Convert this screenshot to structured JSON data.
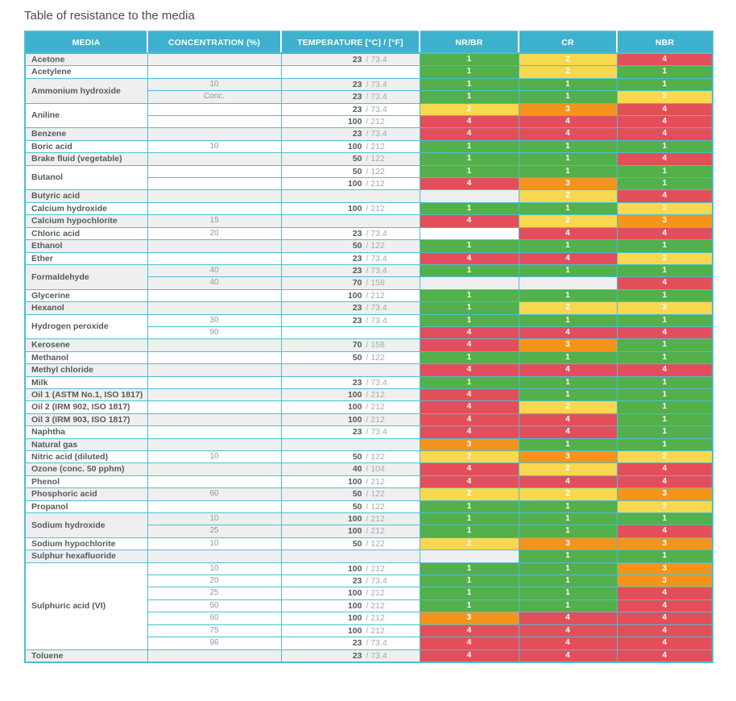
{
  "title": "Table of resistance to the media",
  "table": {
    "columns": [
      "MEDIA",
      "CONCENTRATION (%)",
      "TEMPERATURE [°C] / [°F]",
      "NR/BR",
      "CR",
      "NBR"
    ],
    "header_bg": "#3db1cd",
    "border_color": "#4bbfd3",
    "alt_row_bg": "#efefef",
    "rating_colors": {
      "1": "#53b04b",
      "2": "#f7d84f",
      "3": "#f5941d",
      "4": "#e24f5b"
    },
    "groups": [
      {
        "media": "Acetone",
        "rows": [
          {
            "conc": "",
            "temp_c": "23",
            "temp_f": "73.4",
            "nrbr": 1,
            "cr": 2,
            "nbr": 4
          }
        ]
      },
      {
        "media": "Acetylene",
        "rows": [
          {
            "conc": "",
            "temp_c": "",
            "temp_f": "",
            "nrbr": 1,
            "cr": 2,
            "nbr": 1
          }
        ]
      },
      {
        "media": "Ammonium hydroxide",
        "rows": [
          {
            "conc": "10",
            "temp_c": "23",
            "temp_f": "73.4",
            "nrbr": 1,
            "cr": 1,
            "nbr": 1
          },
          {
            "conc": "Conc.",
            "temp_c": "23",
            "temp_f": "73.4",
            "nrbr": 1,
            "cr": 1,
            "nbr": 2
          }
        ]
      },
      {
        "media": "Aniline",
        "rows": [
          {
            "conc": "",
            "temp_c": "23",
            "temp_f": "73.4",
            "nrbr": 2,
            "cr": 3,
            "nbr": 4
          },
          {
            "conc": "",
            "temp_c": "100",
            "temp_f": "212",
            "nrbr": 4,
            "cr": 4,
            "nbr": 4
          }
        ]
      },
      {
        "media": "Benzene",
        "rows": [
          {
            "conc": "",
            "temp_c": "23",
            "temp_f": "73.4",
            "nrbr": 4,
            "cr": 4,
            "nbr": 4
          }
        ]
      },
      {
        "media": "Boric acid",
        "rows": [
          {
            "conc": "10",
            "temp_c": "100",
            "temp_f": "212",
            "nrbr": 1,
            "cr": 1,
            "nbr": 1
          }
        ]
      },
      {
        "media": "Brake fluid (vegetable)",
        "rows": [
          {
            "conc": "",
            "temp_c": "50",
            "temp_f": "122",
            "nrbr": 1,
            "cr": 1,
            "nbr": 4
          }
        ]
      },
      {
        "media": "Butanol",
        "rows": [
          {
            "conc": "",
            "temp_c": "50",
            "temp_f": "122",
            "nrbr": 1,
            "cr": 1,
            "nbr": 1
          },
          {
            "conc": "",
            "temp_c": "100",
            "temp_f": "212",
            "nrbr": 4,
            "cr": 3,
            "nbr": 1
          }
        ]
      },
      {
        "media": "Butyric acid",
        "rows": [
          {
            "conc": "",
            "temp_c": "",
            "temp_f": "",
            "nrbr": null,
            "cr": 2,
            "nbr": 4
          }
        ]
      },
      {
        "media": "Calcium hydroxide",
        "rows": [
          {
            "conc": "",
            "temp_c": "100",
            "temp_f": "212",
            "nrbr": 1,
            "cr": 1,
            "nbr": 2
          }
        ]
      },
      {
        "media": "Calcium hypochlorite",
        "rows": [
          {
            "conc": "15",
            "temp_c": "",
            "temp_f": "",
            "nrbr": 4,
            "cr": 2,
            "nbr": 3
          }
        ]
      },
      {
        "media": "Chloric acid",
        "rows": [
          {
            "conc": "20",
            "temp_c": "23",
            "temp_f": "73.4",
            "nrbr": null,
            "cr": 4,
            "nbr": 4
          }
        ]
      },
      {
        "media": "Ethanol",
        "rows": [
          {
            "conc": "",
            "temp_c": "50",
            "temp_f": "122",
            "nrbr": 1,
            "cr": 1,
            "nbr": 1
          }
        ]
      },
      {
        "media": "Ether",
        "rows": [
          {
            "conc": "",
            "temp_c": "23",
            "temp_f": "73.4",
            "nrbr": 4,
            "cr": 4,
            "nbr": 2
          }
        ]
      },
      {
        "media": "Formaldehyde",
        "rows": [
          {
            "conc": "40",
            "temp_c": "23",
            "temp_f": "73.4",
            "nrbr": 1,
            "cr": 1,
            "nbr": 1
          },
          {
            "conc": "40",
            "temp_c": "70",
            "temp_f": "158",
            "nrbr": null,
            "cr": null,
            "nbr": 4
          }
        ]
      },
      {
        "media": "Glycerine",
        "rows": [
          {
            "conc": "",
            "temp_c": "100",
            "temp_f": "212",
            "nrbr": 1,
            "cr": 1,
            "nbr": 1
          }
        ]
      },
      {
        "media": "Hexanol",
        "rows": [
          {
            "conc": "",
            "temp_c": "23",
            "temp_f": "73.4",
            "nrbr": 1,
            "cr": 2,
            "nbr": 2
          }
        ]
      },
      {
        "media": "Hydrogen peroxide",
        "rows": [
          {
            "conc": "30",
            "temp_c": "23",
            "temp_f": "73.4",
            "nrbr": 1,
            "cr": 1,
            "nbr": 1
          },
          {
            "conc": "90",
            "temp_c": "",
            "temp_f": "",
            "nrbr": 4,
            "cr": 4,
            "nbr": 4
          }
        ]
      },
      {
        "media": "Kerosene",
        "rows": [
          {
            "conc": "",
            "temp_c": "70",
            "temp_f": "158",
            "nrbr": 4,
            "cr": 3,
            "nbr": 1
          }
        ]
      },
      {
        "media": "Methanol",
        "rows": [
          {
            "conc": "",
            "temp_c": "50",
            "temp_f": "122",
            "nrbr": 1,
            "cr": 1,
            "nbr": 1
          }
        ]
      },
      {
        "media": "Methyl chloride",
        "rows": [
          {
            "conc": "",
            "temp_c": "",
            "temp_f": "",
            "nrbr": 4,
            "cr": 4,
            "nbr": 4
          }
        ]
      },
      {
        "media": "Milk",
        "rows": [
          {
            "conc": "",
            "temp_c": "23",
            "temp_f": "73.4",
            "nrbr": 1,
            "cr": 1,
            "nbr": 1
          }
        ]
      },
      {
        "media": "Oil 1 (ASTM No.1, ISO 1817)",
        "rows": [
          {
            "conc": "",
            "temp_c": "100",
            "temp_f": "212",
            "nrbr": 4,
            "cr": 1,
            "nbr": 1
          }
        ]
      },
      {
        "media": "Oil 2 (IRM 902, ISO 1817)",
        "rows": [
          {
            "conc": "",
            "temp_c": "100",
            "temp_f": "212",
            "nrbr": 4,
            "cr": 2,
            "nbr": 1
          }
        ]
      },
      {
        "media": "Oil 3 (IRM 903, ISO 1817)",
        "rows": [
          {
            "conc": "",
            "temp_c": "100",
            "temp_f": "212",
            "nrbr": 4,
            "cr": 4,
            "nbr": 1
          }
        ]
      },
      {
        "media": "Naphtha",
        "rows": [
          {
            "conc": "",
            "temp_c": "23",
            "temp_f": "73.4",
            "nrbr": 4,
            "cr": 4,
            "nbr": 1
          }
        ]
      },
      {
        "media": "Natural gas",
        "rows": [
          {
            "conc": "",
            "temp_c": "",
            "temp_f": "",
            "nrbr": 3,
            "cr": 1,
            "nbr": 1
          }
        ]
      },
      {
        "media": "Nitric acid (diluted)",
        "rows": [
          {
            "conc": "10",
            "temp_c": "50",
            "temp_f": "122",
            "nrbr": 2,
            "cr": 3,
            "nbr": 2
          }
        ]
      },
      {
        "media": "Ozone (conc. 50 pphm)",
        "rows": [
          {
            "conc": "",
            "temp_c": "40",
            "temp_f": "104",
            "nrbr": 4,
            "cr": 2,
            "nbr": 4
          }
        ]
      },
      {
        "media": "Phenol",
        "rows": [
          {
            "conc": "",
            "temp_c": "100",
            "temp_f": "212",
            "nrbr": 4,
            "cr": 4,
            "nbr": 4
          }
        ]
      },
      {
        "media": "Phosphoric acid",
        "rows": [
          {
            "conc": "60",
            "temp_c": "50",
            "temp_f": "122",
            "nrbr": 2,
            "cr": 2,
            "nbr": 3
          }
        ]
      },
      {
        "media": "Propanol",
        "rows": [
          {
            "conc": "",
            "temp_c": "50",
            "temp_f": "122",
            "nrbr": 1,
            "cr": 1,
            "nbr": 2
          }
        ]
      },
      {
        "media": "Sodium hydroxide",
        "rows": [
          {
            "conc": "10",
            "temp_c": "100",
            "temp_f": "212",
            "nrbr": 1,
            "cr": 1,
            "nbr": 1
          },
          {
            "conc": "25",
            "temp_c": "100",
            "temp_f": "212",
            "nrbr": 1,
            "cr": 1,
            "nbr": 4
          }
        ]
      },
      {
        "media": "Sodium hypochlorite",
        "rows": [
          {
            "conc": "10",
            "temp_c": "50",
            "temp_f": "122",
            "nrbr": 2,
            "cr": 3,
            "nbr": 3
          }
        ]
      },
      {
        "media": "Sulphur hexafluoride",
        "rows": [
          {
            "conc": "",
            "temp_c": "",
            "temp_f": "",
            "nrbr": null,
            "cr": 1,
            "nbr": 1
          }
        ]
      },
      {
        "media": "Sulphuric acid (VI)",
        "rows": [
          {
            "conc": "10",
            "temp_c": "100",
            "temp_f": "212",
            "nrbr": 1,
            "cr": 1,
            "nbr": 3
          },
          {
            "conc": "20",
            "temp_c": "23",
            "temp_f": "73.4",
            "nrbr": 1,
            "cr": 1,
            "nbr": 3
          },
          {
            "conc": "25",
            "temp_c": "100",
            "temp_f": "212",
            "nrbr": 1,
            "cr": 1,
            "nbr": 4
          },
          {
            "conc": "50",
            "temp_c": "100",
            "temp_f": "212",
            "nrbr": 1,
            "cr": 1,
            "nbr": 4
          },
          {
            "conc": "60",
            "temp_c": "100",
            "temp_f": "212",
            "nrbr": 3,
            "cr": 4,
            "nbr": 4
          },
          {
            "conc": "75",
            "temp_c": "100",
            "temp_f": "212",
            "nrbr": 4,
            "cr": 4,
            "nbr": 4
          },
          {
            "conc": "96",
            "temp_c": "23",
            "temp_f": "73.4",
            "nrbr": 4,
            "cr": 4,
            "nbr": 4
          }
        ]
      },
      {
        "media": "Toluene",
        "rows": [
          {
            "conc": "",
            "temp_c": "23",
            "temp_f": "73.4",
            "nrbr": 4,
            "cr": 4,
            "nbr": 4
          }
        ]
      }
    ]
  }
}
